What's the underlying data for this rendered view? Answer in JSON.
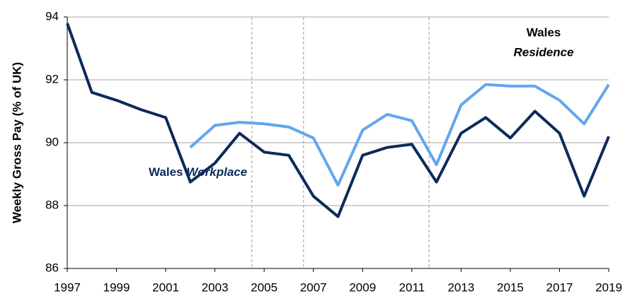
{
  "chart_data": {
    "type": "line",
    "y_label": "Weekly Gross Pay (% of UK)",
    "x": [
      1997,
      1998,
      1999,
      2000,
      2001,
      2002,
      2003,
      2004,
      2005,
      2006,
      2007,
      2008,
      2009,
      2010,
      2011,
      2012,
      2013,
      2014,
      2015,
      2016,
      2017,
      2018,
      2019
    ],
    "series": [
      {
        "name": [
          "Wales",
          "Workplace"
        ],
        "color": "#0d2a5c",
        "values": [
          93.8,
          91.6,
          91.35,
          91.05,
          90.8,
          88.75,
          89.35,
          90.3,
          89.7,
          89.6,
          88.3,
          87.65,
          89.6,
          89.85,
          89.95,
          88.75,
          90.3,
          90.8,
          90.15,
          91.0,
          90.3,
          88.3,
          90.2
        ]
      },
      {
        "name": [
          "Wales",
          "Residence"
        ],
        "color": "#62a6ee",
        "values": [
          null,
          null,
          null,
          null,
          null,
          89.85,
          90.55,
          90.65,
          90.6,
          90.5,
          90.15,
          88.65,
          90.4,
          90.9,
          90.7,
          89.3,
          91.2,
          91.85,
          91.8,
          91.8,
          91.35,
          90.6,
          91.85
        ]
      }
    ],
    "xlim": [
      1997,
      2019
    ],
    "xticks": [
      1997,
      1999,
      2001,
      2003,
      2005,
      2007,
      2009,
      2011,
      2013,
      2015,
      2017,
      2019
    ],
    "ylim": [
      86,
      94
    ],
    "yticks": [
      86,
      88,
      90,
      92,
      94
    ],
    "grid": true,
    "reference_lines": [
      2004.5,
      2006.6,
      2011.7
    ]
  }
}
